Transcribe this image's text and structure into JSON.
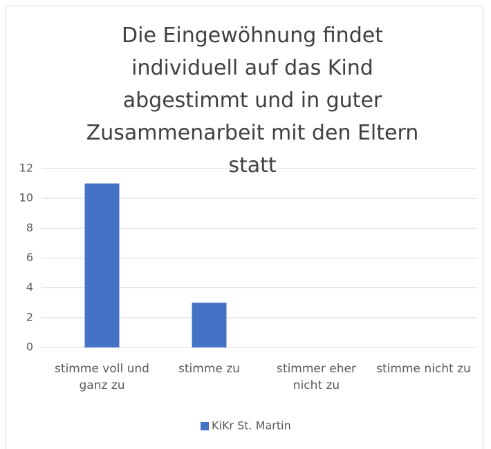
{
  "chart_data": {
    "type": "bar",
    "title": "Die Eingewöhnung findet individuell auf das Kind abgestimmt und in guter Zusammenarbeit mit den Eltern statt",
    "categories": [
      "stimme voll und ganz zu",
      "stimme zu",
      "stimmer eher nicht zu",
      "stimme nicht zu"
    ],
    "series": [
      {
        "name": "KiKr St. Martin",
        "color": "#4472c4",
        "values": [
          11,
          3,
          0,
          0
        ]
      }
    ],
    "ylim": [
      0,
      12
    ],
    "yticks": [
      0,
      2,
      4,
      6,
      8,
      10,
      12
    ],
    "grid": true,
    "legend": "bottom"
  }
}
